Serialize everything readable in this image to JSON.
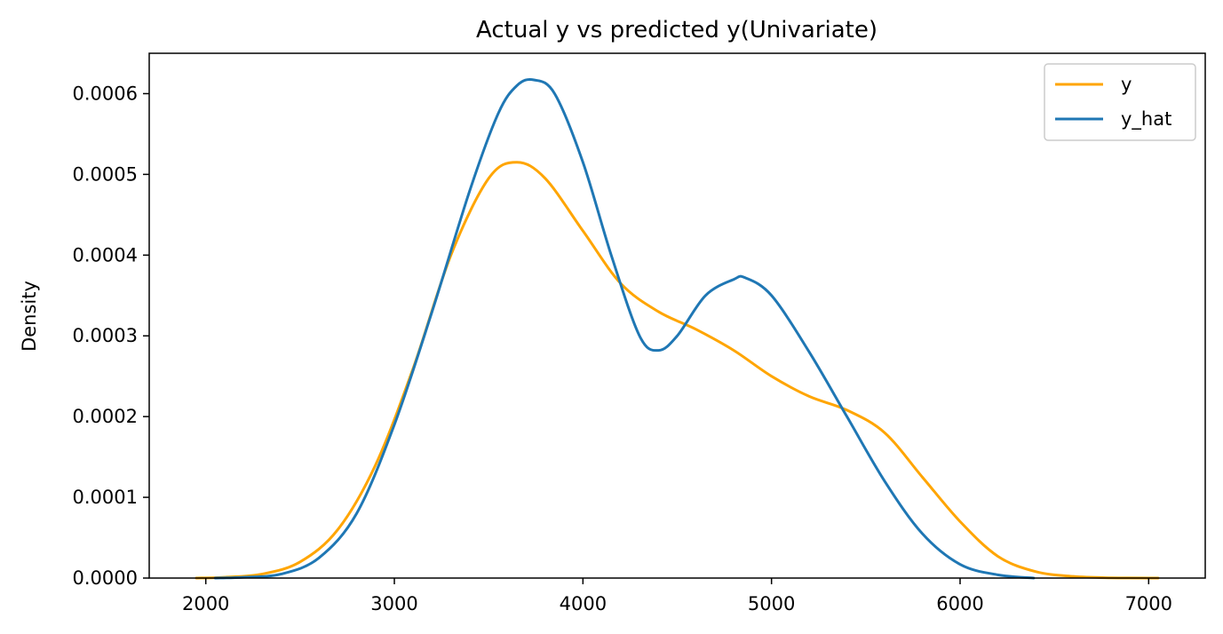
{
  "chart_data": {
    "type": "line",
    "title": "Actual y vs predicted y(Univariate)",
    "xlabel": "",
    "ylabel": "Density",
    "xlim": [
      1700,
      7300
    ],
    "ylim": [
      0,
      0.00065
    ],
    "x_ticks": [
      2000,
      3000,
      4000,
      5000,
      6000,
      7000
    ],
    "x_tick_labels": [
      "2000",
      "3000",
      "4000",
      "5000",
      "6000",
      "7000"
    ],
    "y_ticks": [
      0,
      0.0001,
      0.0002,
      0.0003,
      0.0004,
      0.0005,
      0.0006
    ],
    "y_tick_labels": [
      "0.0000",
      "0.0001",
      "0.0002",
      "0.0003",
      "0.0004",
      "0.0005",
      "0.0006"
    ],
    "grid": false,
    "legend_position": "top-right",
    "series": [
      {
        "name": "y",
        "color": "#FFA500",
        "x": [
          1950,
          2100,
          2300,
          2500,
          2700,
          2900,
          3100,
          3300,
          3500,
          3650,
          3800,
          4000,
          4200,
          4400,
          4600,
          4800,
          5000,
          5200,
          5400,
          5600,
          5800,
          6000,
          6200,
          6400,
          6600,
          6800,
          7050
        ],
        "y": [
          0.0,
          1e-06,
          5e-06,
          2e-05,
          6e-05,
          0.00014,
          0.00026,
          0.0004,
          0.000495,
          0.000515,
          0.000495,
          0.00043,
          0.000365,
          0.00033,
          0.000308,
          0.000282,
          0.00025,
          0.000225,
          0.000208,
          0.00018,
          0.000125,
          7e-05,
          2.7e-05,
          8e-06,
          2e-06,
          3e-07,
          0.0
        ]
      },
      {
        "name": "y_hat",
        "color": "#1F77B4",
        "x": [
          2050,
          2200,
          2400,
          2600,
          2800,
          3000,
          3200,
          3400,
          3550,
          3650,
          3740,
          3850,
          4000,
          4150,
          4300,
          4400,
          4500,
          4650,
          4800,
          4860,
          5000,
          5200,
          5400,
          5600,
          5800,
          6000,
          6200,
          6390
        ],
        "y": [
          0.0,
          1e-06,
          5e-06,
          2.5e-05,
          8e-05,
          0.00019,
          0.00033,
          0.00048,
          0.000575,
          0.00061,
          0.000617,
          0.0006,
          0.000515,
          0.0004,
          0.0003,
          0.000282,
          0.0003,
          0.00035,
          0.00037,
          0.000372,
          0.00035,
          0.00028,
          0.0002,
          0.00012,
          5.5e-05,
          1.7e-05,
          4e-06,
          0.0
        ]
      }
    ]
  }
}
